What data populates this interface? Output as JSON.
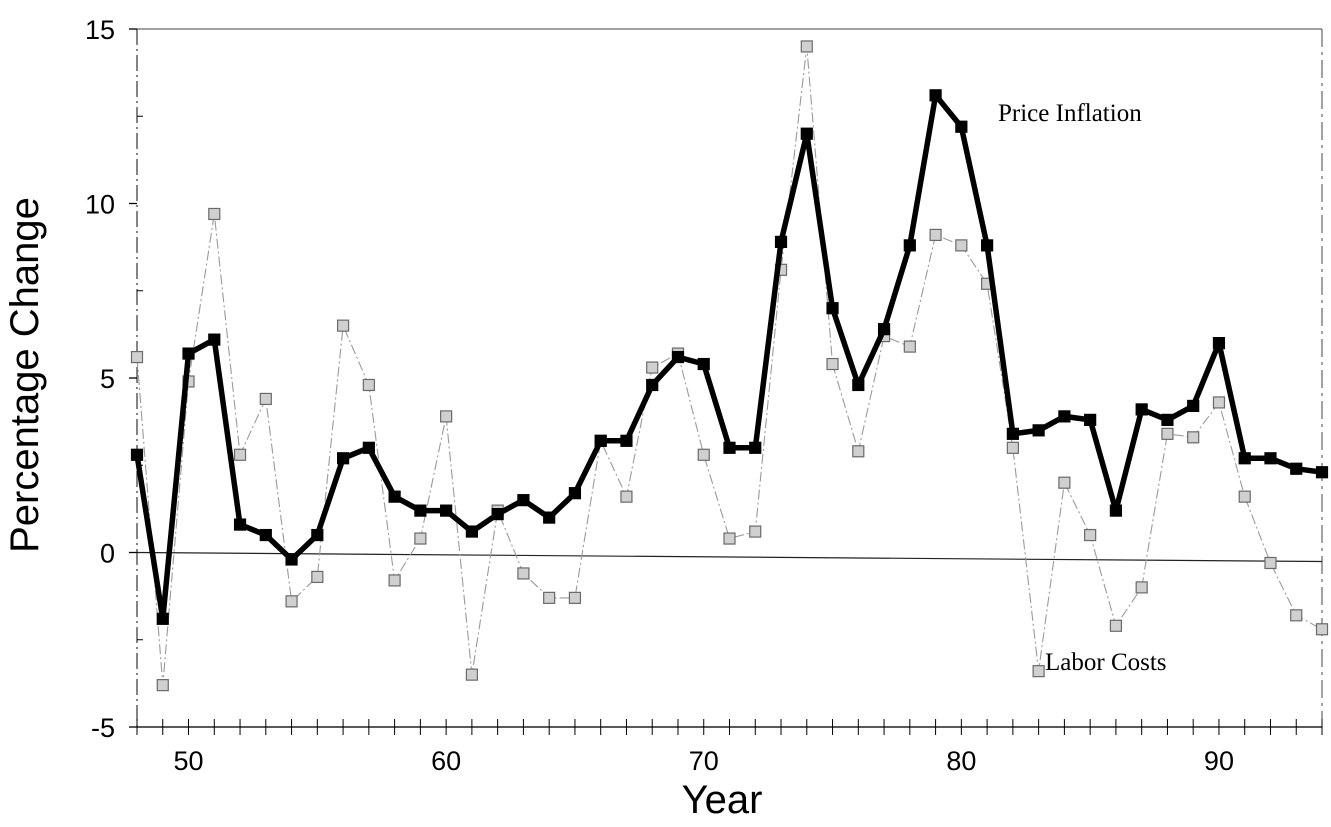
{
  "chart_data": {
    "type": "line",
    "title": "",
    "xlabel": "Year",
    "ylabel": "Percentage Change",
    "xlim": [
      48,
      94
    ],
    "ylim": [
      -5,
      15
    ],
    "grid": false,
    "x_ticks": [
      {
        "value": 50,
        "label": "50"
      },
      {
        "value": 60,
        "label": "60"
      },
      {
        "value": 70,
        "label": "70"
      },
      {
        "value": 80,
        "label": "80"
      },
      {
        "value": 90,
        "label": "90"
      }
    ],
    "y_ticks": [
      {
        "value": 15,
        "label": "15"
      },
      {
        "value": 10,
        "label": "10"
      },
      {
        "value": 5,
        "label": "5"
      },
      {
        "value": 0,
        "label": "0"
      },
      {
        "value": -5,
        "label": "-5"
      }
    ],
    "x": [
      48,
      49,
      50,
      51,
      52,
      53,
      54,
      55,
      56,
      57,
      58,
      59,
      60,
      61,
      62,
      63,
      64,
      65,
      66,
      67,
      68,
      69,
      70,
      71,
      72,
      73,
      74,
      75,
      76,
      77,
      78,
      79,
      80,
      81,
      82,
      83,
      84,
      85,
      86,
      87,
      88,
      89,
      90,
      91,
      92,
      93,
      94
    ],
    "series": [
      {
        "name": "Price Inflation",
        "color": "#000000",
        "values": [
          2.8,
          -1.9,
          5.7,
          6.1,
          0.8,
          0.5,
          -0.2,
          0.5,
          2.7,
          3.0,
          1.6,
          1.2,
          1.2,
          0.6,
          1.1,
          1.5,
          1.0,
          1.7,
          3.2,
          3.2,
          4.8,
          5.6,
          5.4,
          3.0,
          3.0,
          8.9,
          12.0,
          7.0,
          4.8,
          6.4,
          8.8,
          13.1,
          12.2,
          8.8,
          3.4,
          3.5,
          3.9,
          3.8,
          1.2,
          4.1,
          3.8,
          4.2,
          6.0,
          2.7,
          2.7,
          2.4,
          2.3
        ]
      },
      {
        "name": "Labor Costs",
        "color": "#9a9a9a",
        "values": [
          5.6,
          -3.8,
          4.9,
          9.7,
          2.8,
          4.4,
          -1.4,
          -0.7,
          6.5,
          4.8,
          -0.8,
          0.4,
          3.9,
          -3.5,
          1.2,
          -0.6,
          -1.3,
          -1.3,
          3.2,
          1.6,
          5.3,
          5.7,
          2.8,
          0.4,
          0.6,
          8.1,
          14.5,
          5.4,
          2.9,
          6.2,
          5.9,
          9.1,
          8.8,
          7.7,
          3.0,
          -3.4,
          2.0,
          0.5,
          -2.1,
          -1.0,
          3.4,
          3.3,
          4.3,
          1.6,
          -0.3,
          -1.8,
          -2.2
        ]
      }
    ],
    "annotations": [
      {
        "series": "Price Inflation",
        "text": "Price Inflation"
      },
      {
        "series": "Labor Costs",
        "text": "Labor Costs"
      }
    ]
  }
}
